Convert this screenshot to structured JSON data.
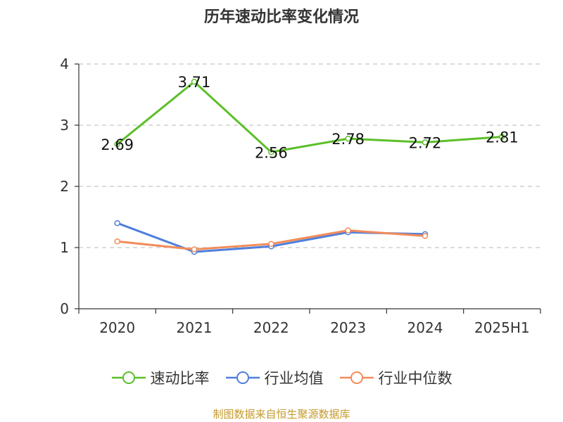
{
  "chart_data": {
    "type": "line",
    "title": "历年速动比率变化情况",
    "categories": [
      "2020",
      "2021",
      "2022",
      "2023",
      "2024",
      "2025H1"
    ],
    "ylim": [
      0,
      4
    ],
    "yticks": [
      "0",
      "1",
      "2",
      "3",
      "4"
    ],
    "grid": true,
    "legend_position": "bottom",
    "series": [
      {
        "name": "速动比率",
        "color": "#5cbf29",
        "values": [
          2.69,
          3.71,
          2.56,
          2.78,
          2.72,
          2.81
        ],
        "labels": [
          "2.69",
          "3.71",
          "2.56",
          "2.78",
          "2.72",
          "2.81"
        ],
        "show_labels": true
      },
      {
        "name": "行业均值",
        "color": "#4f7fdc",
        "values": [
          1.4,
          0.93,
          1.02,
          1.25,
          1.22,
          null
        ],
        "show_labels": false
      },
      {
        "name": "行业中位数",
        "color": "#f28c5a",
        "values": [
          1.1,
          0.97,
          1.06,
          1.28,
          1.19,
          null
        ],
        "show_labels": false
      }
    ]
  },
  "source_note": "制图数据来自恒生聚源数据库"
}
